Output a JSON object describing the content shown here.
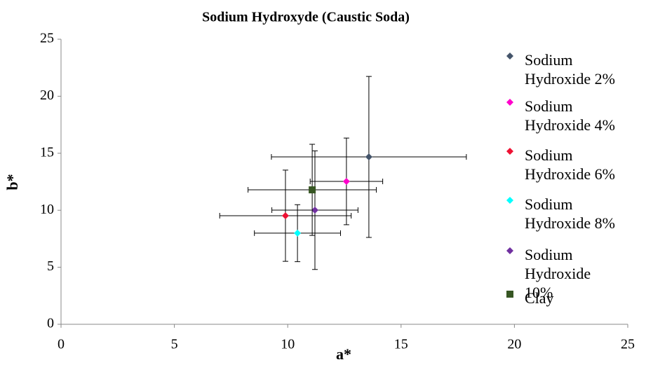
{
  "chart_data": {
    "type": "scatter",
    "title": "Sodium Hydroxyde (Caustic Soda)",
    "x_label": "a*",
    "y_label": "b*",
    "xlim": [
      0,
      25
    ],
    "xticks": [
      0,
      5,
      10,
      15,
      20,
      25
    ],
    "ylim": [
      0,
      25
    ],
    "yticks": [
      0,
      5,
      10,
      15,
      20,
      25
    ],
    "series": [
      {
        "name": "Sodium Hydroxide 2%",
        "color": "#44546a",
        "marker": "diamond",
        "x": [
          13.58
        ],
        "y": [
          14.68
        ],
        "xerr": [
          4.3
        ],
        "yerr": [
          7.06
        ]
      },
      {
        "name": "Sodium Hydroxide 4%",
        "color": "#ff00cc",
        "marker": "diamond",
        "x": [
          12.59
        ],
        "y": [
          12.53
        ],
        "xerr": [
          1.6
        ],
        "yerr": [
          3.8
        ]
      },
      {
        "name": "Sodium Hydroxide 6%",
        "color": "#ee1133",
        "marker": "diamond",
        "x": [
          9.9
        ],
        "y": [
          9.52
        ],
        "xerr": [
          2.9
        ],
        "yerr": [
          4.0
        ]
      },
      {
        "name": "Sodium Hydroxide 8%",
        "color": "#00ffff",
        "marker": "diamond",
        "x": [
          10.43
        ],
        "y": [
          7.99
        ],
        "xerr": [
          1.9
        ],
        "yerr": [
          2.5
        ]
      },
      {
        "name": "Sodium Hydroxide 10%",
        "color": "#7030a0",
        "marker": "diamond",
        "x": [
          11.2
        ],
        "y": [
          10.01
        ],
        "xerr": [
          1.9
        ],
        "yerr": [
          5.2
        ]
      },
      {
        "name": "Clay",
        "color": "#375623",
        "marker": "square",
        "x": [
          11.08
        ],
        "y": [
          11.79
        ],
        "xerr": [
          2.83
        ],
        "yerr": [
          4.0
        ]
      }
    ]
  }
}
